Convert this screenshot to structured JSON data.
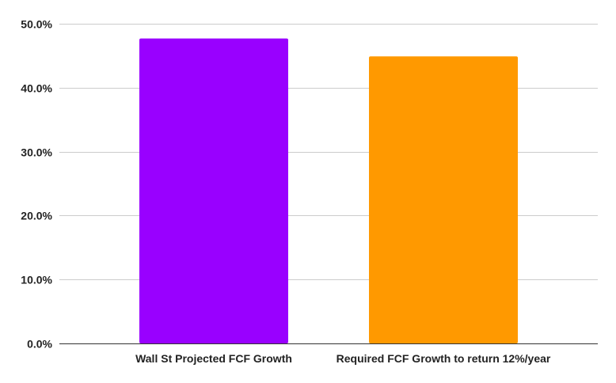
{
  "chart_data": {
    "type": "bar",
    "categories": [
      "Wall St Projected FCF Growth",
      "Required FCF Growth to return 12%/year"
    ],
    "values": [
      47.7,
      44.9
    ],
    "value_format": "percent",
    "colors": [
      "#9900ff",
      "#ff9900"
    ],
    "ylim": [
      0,
      50
    ],
    "yticks": [
      0,
      10,
      20,
      30,
      40,
      50
    ],
    "ytick_labels": [
      "0.0%",
      "10.0%",
      "20.0%",
      "30.0%",
      "40.0%",
      "50.0%"
    ],
    "grid": true,
    "legend": "none",
    "title": "",
    "xlabel": "",
    "ylabel": ""
  }
}
